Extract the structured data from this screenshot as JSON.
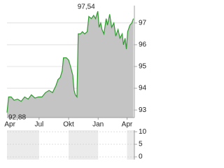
{
  "chart_data": [
    {
      "type": "area",
      "x": [
        -9,
        -4,
        4,
        13,
        24,
        35,
        46,
        57,
        67,
        78,
        89,
        100,
        111,
        122,
        133,
        143,
        150,
        157,
        163,
        167,
        176,
        183,
        189,
        196,
        200,
        204,
        209,
        213,
        220,
        226,
        233,
        241,
        246,
        254,
        261,
        267,
        274,
        278,
        283,
        287,
        293,
        300,
        304,
        311,
        317,
        324,
        330,
        337,
        343,
        350,
        354,
        359,
        363,
        367,
        374,
        380,
        385
      ],
      "values": [
        92.88,
        93.6,
        93.6,
        93.45,
        93.5,
        93.4,
        93.6,
        93.5,
        93.7,
        93.55,
        93.6,
        93.6,
        93.8,
        93.9,
        93.8,
        94.1,
        94.4,
        94.5,
        94.8,
        95.4,
        95.4,
        95.3,
        95.0,
        94.6,
        93.9,
        93.7,
        93.6,
        96.5,
        96.5,
        96.6,
        96.5,
        96.6,
        97.3,
        97.2,
        97.35,
        97.2,
        97.54,
        96.8,
        97.0,
        96.7,
        96.5,
        97.2,
        96.9,
        97.4,
        96.8,
        97.0,
        96.4,
        96.7,
        96.3,
        96.5,
        96.0,
        96.3,
        95.8,
        96.6,
        96.9,
        97.0,
        97.2
      ],
      "color": "#2e9a2e",
      "fill": "#c4c4c4",
      "xlim": [
        -9,
        388
      ],
      "xticks": [
        {
          "value": 0,
          "label": "Apr"
        },
        {
          "value": 91,
          "label": "Jul"
        },
        {
          "value": 183,
          "label": "Okt"
        },
        {
          "value": 275,
          "label": "Jan"
        },
        {
          "value": 365,
          "label": "Apr"
        }
      ],
      "ylim": [
        92.65,
        97.8
      ],
      "yticks": [
        93,
        94,
        95,
        96,
        97
      ],
      "grid": true,
      "annotations": [
        {
          "x": 274,
          "value": 97.54,
          "label": "97,54"
        },
        {
          "x": -9,
          "value": 92.88,
          "label": "92,88"
        }
      ]
    },
    {
      "type": "bar",
      "ylim": [
        -1.1,
        10.6
      ],
      "yticks": [
        0,
        5,
        10
      ],
      "grid": true
    }
  ]
}
